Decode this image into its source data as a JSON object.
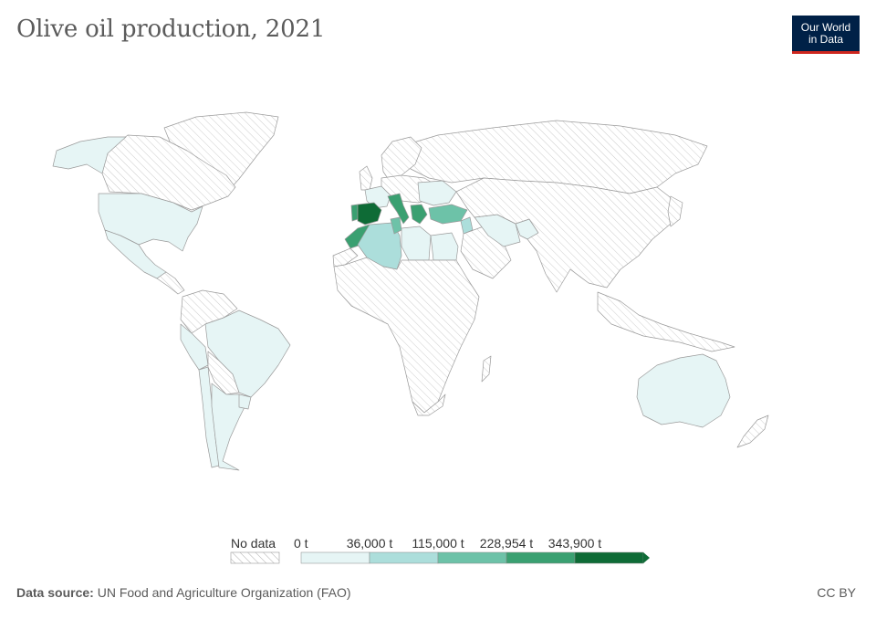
{
  "title": "Olive oil production, 2021",
  "logo": {
    "line1": "Our World",
    "line2": "in Data"
  },
  "legend": {
    "no_data_label": "No data",
    "bins": [
      {
        "label": "0 t",
        "color": "#e6f5f5"
      },
      {
        "label": "36,000 t",
        "color": "#acdedb"
      },
      {
        "label": "115,000 t",
        "color": "#6dc2a8"
      },
      {
        "label": "228,954 t",
        "color": "#3aa071"
      },
      {
        "label": "343,900 t",
        "color": "#0e6b36"
      }
    ]
  },
  "colors": {
    "no_data_hatch": "#c8c8c8",
    "country_border": "#9a9a9a"
  },
  "footer": {
    "source_label": "Data source:",
    "source_text": "UN Food and Agriculture Organization (FAO)",
    "license": "CC BY"
  }
}
